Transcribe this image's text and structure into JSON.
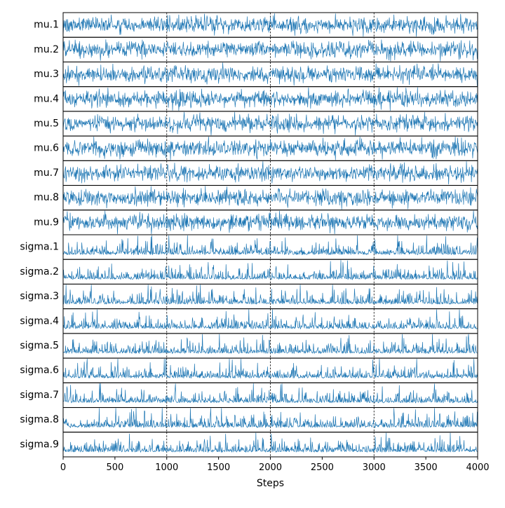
{
  "chart_data": {
    "type": "line",
    "title": "",
    "xlabel": "Steps",
    "ylabel": "",
    "xlim": [
      0,
      4000
    ],
    "x_ticks": [
      0,
      500,
      1000,
      1500,
      2000,
      2500,
      3000,
      3500,
      4000
    ],
    "x_tick_labels": [
      "0",
      "500",
      "1000",
      "1500",
      "2000",
      "2500",
      "3000",
      "3500",
      "4000"
    ],
    "chain_boundaries": [
      1000,
      2000,
      3000
    ],
    "grid": false,
    "legend": "none",
    "line_color": "#1f77b4",
    "series": [
      {
        "name": "mu.1",
        "shape": "symmetric"
      },
      {
        "name": "mu.2",
        "shape": "symmetric"
      },
      {
        "name": "mu.3",
        "shape": "symmetric"
      },
      {
        "name": "mu.4",
        "shape": "symmetric"
      },
      {
        "name": "mu.5",
        "shape": "symmetric"
      },
      {
        "name": "mu.6",
        "shape": "symmetric"
      },
      {
        "name": "mu.7",
        "shape": "symmetric"
      },
      {
        "name": "mu.8",
        "shape": "symmetric"
      },
      {
        "name": "mu.9",
        "shape": "symmetric"
      },
      {
        "name": "sigma.1",
        "shape": "skewed"
      },
      {
        "name": "sigma.2",
        "shape": "skewed"
      },
      {
        "name": "sigma.3",
        "shape": "skewed"
      },
      {
        "name": "sigma.4",
        "shape": "skewed"
      },
      {
        "name": "sigma.5",
        "shape": "skewed"
      },
      {
        "name": "sigma.6",
        "shape": "skewed"
      },
      {
        "name": "sigma.7",
        "shape": "skewed"
      },
      {
        "name": "sigma.8",
        "shape": "skewed"
      },
      {
        "name": "sigma.9",
        "shape": "skewed"
      }
    ]
  }
}
